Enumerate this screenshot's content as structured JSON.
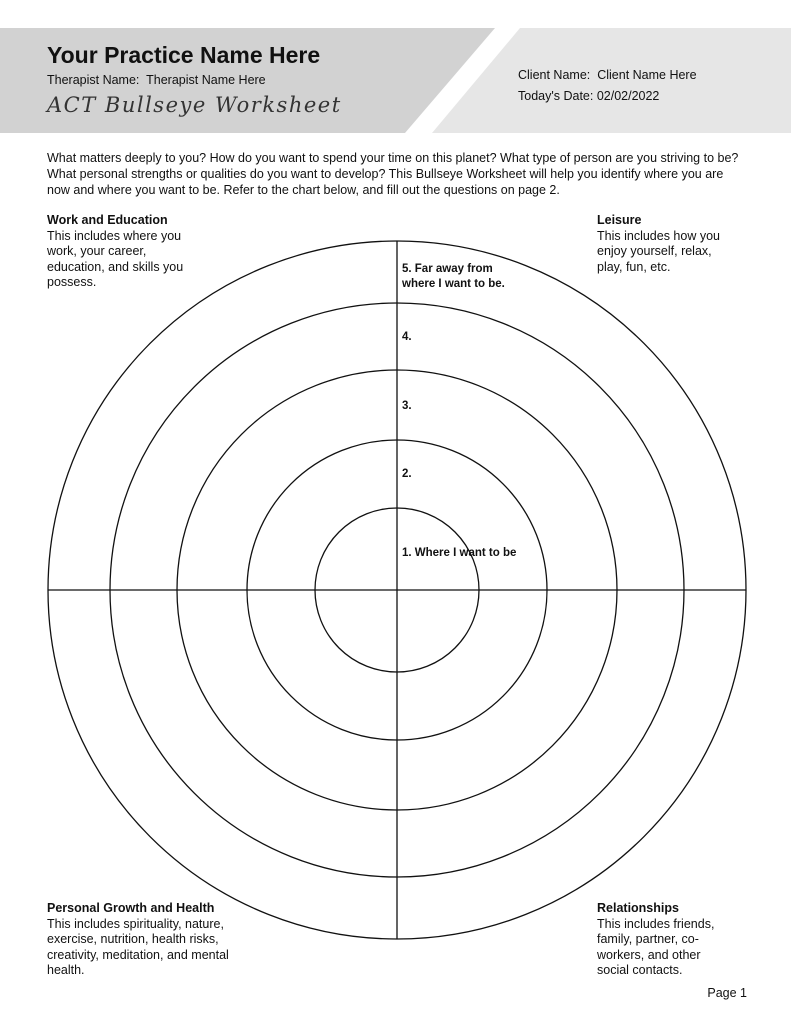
{
  "header": {
    "practice_name": "Your Practice Name Here",
    "therapist_label": "Therapist Name:",
    "therapist_value": "Therapist Name Here",
    "worksheet_title": "ACT Bullseye Worksheet",
    "client_label": "Client Name:",
    "client_value": "Client Name Here",
    "date_label": "Today's Date:",
    "date_value": "02/02/2022",
    "colors": {
      "left_band": "#d2d2d2",
      "right_band": "#e6e6e6"
    }
  },
  "intro": "What matters deeply to you? How do you want to spend your time on this planet? What type of person are you striving to be? What personal strengths or qualities do you want to develop? This Bullseye Worksheet will help you identify where you are now and where you want to be. Refer to the chart below, and fill out the questions on page 2.",
  "quadrants": {
    "work": {
      "title": "Work and Education",
      "desc": "This includes where you work, your career, education, and skills you possess."
    },
    "leisure": {
      "title": "Leisure",
      "desc": "This includes how you enjoy yourself, relax, play, fun, etc."
    },
    "growth": {
      "title": "Personal Growth and Health",
      "desc": "This includes spirituality, nature, exercise, nutrition, health risks, creativity, meditation, and mental health."
    },
    "relationships": {
      "title": "Relationships",
      "desc": "This includes friends, family, partner, co-workers, and other social contacts."
    }
  },
  "rings": {
    "r5a": "5. Far away from",
    "r5b": "where I want to be.",
    "r4": "4.",
    "r3": "3.",
    "r2": "2.",
    "r1": "1. Where I want to be"
  },
  "footer": {
    "page": "Page 1"
  }
}
